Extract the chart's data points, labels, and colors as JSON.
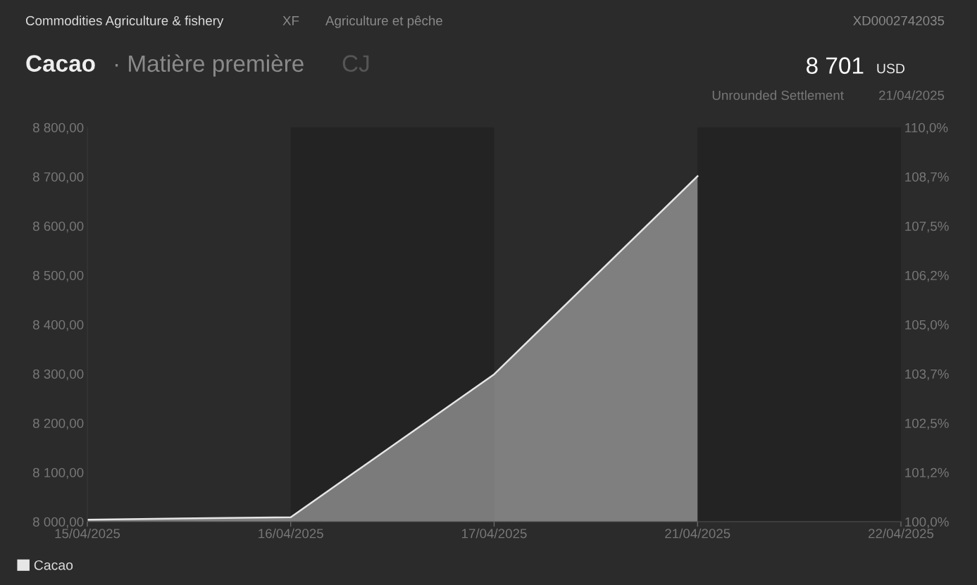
{
  "chart_data": {
    "type": "area",
    "title": "Cacao",
    "subtitle": "· Matière première",
    "annotations": [
      "Commodities Agriculture & fishery",
      "XF",
      "Agriculture et pêche",
      "XD0002742035",
      "CJ",
      "8 701",
      "USD",
      "Unrounded Settlement",
      "21/04/2025"
    ],
    "categories": [
      "15/04/2025",
      "16/04/2025",
      "17/04/2025",
      "21/04/2025",
      "22/04/2025"
    ],
    "series": [
      {
        "name": "Cacao",
        "color": "#e6e6e6",
        "values": [
          8004,
          8009,
          8299,
          8701,
          null
        ]
      }
    ],
    "ylim": [
      8000,
      8800
    ],
    "yticks": [
      {
        "value": 8000,
        "label": "8 000,00"
      },
      {
        "value": 8100,
        "label": "8 100,00"
      },
      {
        "value": 8200,
        "label": "8 200,00"
      },
      {
        "value": 8300,
        "label": "8 300,00"
      },
      {
        "value": 8400,
        "label": "8 400,00"
      },
      {
        "value": 8500,
        "label": "8 500,00"
      },
      {
        "value": 8600,
        "label": "8 600,00"
      },
      {
        "value": 8700,
        "label": "8 700,00"
      },
      {
        "value": 8800,
        "label": "8 800,00"
      }
    ],
    "y2lim": [
      100,
      110
    ],
    "y2ticks": [
      {
        "value": 100,
        "label": "100,0%"
      },
      {
        "value": 101.25,
        "label": "101,2%"
      },
      {
        "value": 102.5,
        "label": "102,5%"
      },
      {
        "value": 103.75,
        "label": "103,7%"
      },
      {
        "value": 105,
        "label": "105,0%"
      },
      {
        "value": 106.25,
        "label": "106,2%"
      },
      {
        "value": 107.5,
        "label": "107,5%"
      },
      {
        "value": 108.75,
        "label": "108,7%"
      },
      {
        "value": 110,
        "label": "110,0%"
      }
    ],
    "bands": [
      {
        "axis": "x",
        "from": "16/04/2025",
        "to": "17/04/2025",
        "color": "#232323"
      },
      {
        "axis": "x",
        "from": "21/04/2025",
        "to": "22/04/2025",
        "color": "#232323"
      }
    ],
    "grid": false,
    "legend": "bottom left"
  }
}
